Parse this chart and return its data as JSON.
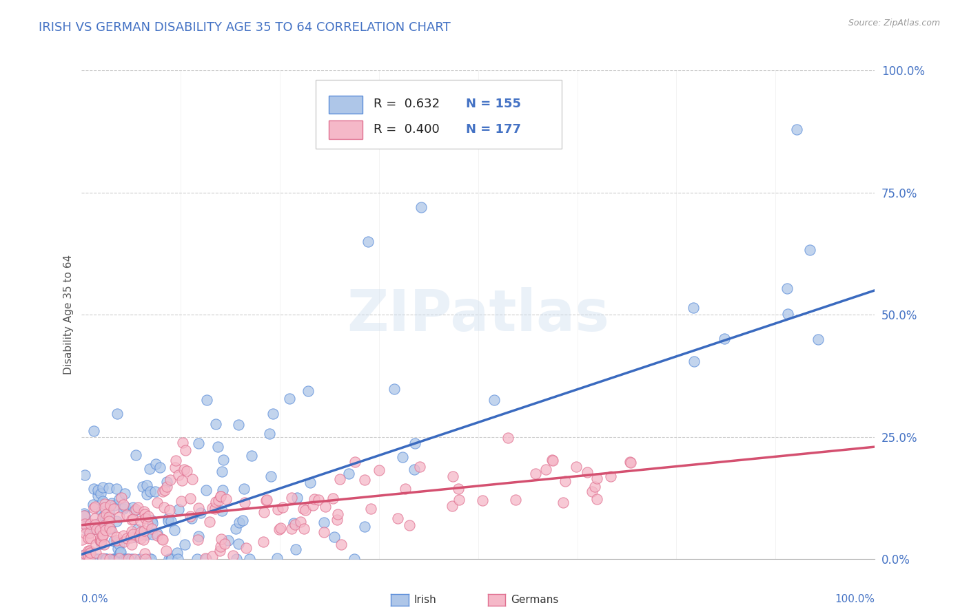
{
  "title": "IRISH VS GERMAN DISABILITY AGE 35 TO 64 CORRELATION CHART",
  "source": "Source: ZipAtlas.com",
  "ylabel": "Disability Age 35 to 64",
  "irish_R": 0.632,
  "irish_N": 155,
  "german_R": 0.4,
  "german_N": 177,
  "irish_color": "#aec6e8",
  "irish_edge_color": "#5b8dd9",
  "irish_line_color": "#3a6abf",
  "german_color": "#f5b8c8",
  "german_edge_color": "#e07090",
  "german_line_color": "#d45070",
  "watermark": "ZIPatlas",
  "title_color": "#4472c4",
  "ytick_labels": [
    "0.0%",
    "25.0%",
    "50.0%",
    "75.0%",
    "100.0%"
  ],
  "ytick_values": [
    0.0,
    0.25,
    0.5,
    0.75,
    1.0
  ],
  "background_color": "#ffffff",
  "grid_color": "#cccccc",
  "irish_seed": 42,
  "german_seed": 99,
  "bottom_legend": [
    "Irish",
    "Germans"
  ]
}
